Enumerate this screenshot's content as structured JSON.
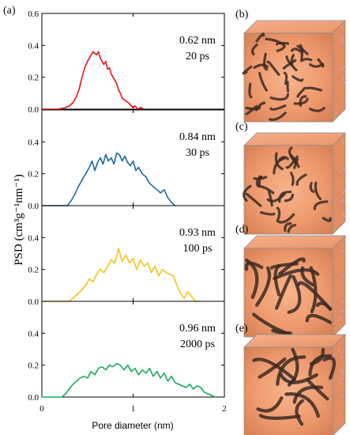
{
  "figure": {
    "main_label": "(a)",
    "panels": [
      {
        "label": "(b)"
      },
      {
        "label": "(c)"
      },
      {
        "label": "(d)"
      },
      {
        "label": "(e)"
      }
    ]
  },
  "chart_data": {
    "type": "line",
    "xlabel": "Pore diameter (nm)",
    "ylabel": "PSD (cm³g⁻¹nm⁻¹)",
    "xlim": [
      0,
      2
    ],
    "ylim": [
      0,
      0.6
    ],
    "x_ticks": [
      0,
      1,
      2
    ],
    "y_ticks": [
      0.0,
      0.2,
      0.4,
      0.6
    ],
    "y_tick_labels": [
      "0.0",
      "0.2",
      "0.4",
      "0.6"
    ],
    "grid": false,
    "subplots": [
      {
        "annotation": [
          "0.62 nm",
          "20 ps"
        ],
        "color": "#e8141b",
        "x": [
          0.0,
          0.18,
          0.26,
          0.3,
          0.34,
          0.38,
          0.41,
          0.44,
          0.47,
          0.5,
          0.53,
          0.56,
          0.58,
          0.6,
          0.62,
          0.64,
          0.66,
          0.68,
          0.7,
          0.72,
          0.74,
          0.76,
          0.78,
          0.8,
          0.82,
          0.84,
          0.86,
          0.88,
          0.9,
          0.92,
          0.95,
          0.98,
          1.0,
          1.02,
          1.05,
          1.08,
          1.12
        ],
        "y": [
          0.0,
          0.0,
          0.01,
          0.02,
          0.04,
          0.08,
          0.13,
          0.2,
          0.26,
          0.3,
          0.33,
          0.36,
          0.35,
          0.34,
          0.36,
          0.32,
          0.3,
          0.28,
          0.3,
          0.25,
          0.26,
          0.22,
          0.2,
          0.18,
          0.16,
          0.12,
          0.1,
          0.07,
          0.06,
          0.05,
          0.04,
          0.02,
          0.01,
          0.02,
          0.0,
          0.01,
          0.0
        ]
      },
      {
        "annotation": [
          "0.84 nm",
          "30 ps"
        ],
        "color": "#1a6aa1",
        "x": [
          0.0,
          0.28,
          0.32,
          0.36,
          0.4,
          0.44,
          0.48,
          0.52,
          0.55,
          0.58,
          0.61,
          0.64,
          0.67,
          0.7,
          0.73,
          0.76,
          0.79,
          0.82,
          0.85,
          0.88,
          0.91,
          0.94,
          0.97,
          1.0,
          1.03,
          1.06,
          1.1,
          1.14,
          1.18,
          1.22,
          1.26,
          1.3,
          1.34,
          1.38,
          1.42,
          1.46
        ],
        "y": [
          0.0,
          0.0,
          0.03,
          0.07,
          0.12,
          0.16,
          0.2,
          0.24,
          0.28,
          0.22,
          0.27,
          0.3,
          0.26,
          0.32,
          0.28,
          0.3,
          0.26,
          0.33,
          0.32,
          0.28,
          0.31,
          0.27,
          0.25,
          0.28,
          0.22,
          0.24,
          0.2,
          0.18,
          0.14,
          0.12,
          0.1,
          0.08,
          0.1,
          0.05,
          0.02,
          0.0
        ]
      },
      {
        "annotation": [
          "0.93 nm",
          "100 ps"
        ],
        "color": "#f2c11a",
        "x": [
          0.0,
          0.3,
          0.36,
          0.42,
          0.48,
          0.52,
          0.56,
          0.6,
          0.64,
          0.68,
          0.72,
          0.76,
          0.8,
          0.84,
          0.88,
          0.92,
          0.96,
          1.0,
          1.04,
          1.08,
          1.12,
          1.16,
          1.2,
          1.24,
          1.28,
          1.32,
          1.36,
          1.4,
          1.44,
          1.48,
          1.52,
          1.56,
          1.6,
          1.64,
          1.68,
          1.72
        ],
        "y": [
          0.0,
          0.0,
          0.03,
          0.06,
          0.1,
          0.14,
          0.12,
          0.17,
          0.2,
          0.18,
          0.22,
          0.26,
          0.24,
          0.33,
          0.25,
          0.29,
          0.24,
          0.27,
          0.2,
          0.26,
          0.22,
          0.24,
          0.18,
          0.22,
          0.16,
          0.2,
          0.18,
          0.17,
          0.16,
          0.1,
          0.05,
          0.02,
          0.06,
          0.03,
          0.0,
          0.0
        ]
      },
      {
        "annotation": [
          "0.96 nm",
          "2000 ps"
        ],
        "color": "#1aaa5c",
        "x": [
          0.0,
          0.22,
          0.26,
          0.3,
          0.34,
          0.38,
          0.42,
          0.46,
          0.5,
          0.54,
          0.58,
          0.62,
          0.66,
          0.7,
          0.74,
          0.78,
          0.82,
          0.86,
          0.9,
          0.94,
          0.98,
          1.02,
          1.06,
          1.1,
          1.14,
          1.18,
          1.22,
          1.26,
          1.3,
          1.34,
          1.38,
          1.42,
          1.46,
          1.5,
          1.54,
          1.58,
          1.62,
          1.66,
          1.7,
          1.74,
          1.78,
          1.82,
          1.86,
          1.9
        ],
        "y": [
          0.0,
          0.0,
          0.02,
          0.05,
          0.08,
          0.1,
          0.12,
          0.13,
          0.12,
          0.16,
          0.14,
          0.18,
          0.19,
          0.17,
          0.2,
          0.19,
          0.21,
          0.2,
          0.17,
          0.2,
          0.16,
          0.18,
          0.14,
          0.17,
          0.15,
          0.18,
          0.13,
          0.16,
          0.12,
          0.15,
          0.1,
          0.13,
          0.09,
          0.08,
          0.07,
          0.06,
          0.08,
          0.05,
          0.07,
          0.06,
          0.03,
          0.02,
          0.01,
          0.0
        ]
      }
    ]
  }
}
